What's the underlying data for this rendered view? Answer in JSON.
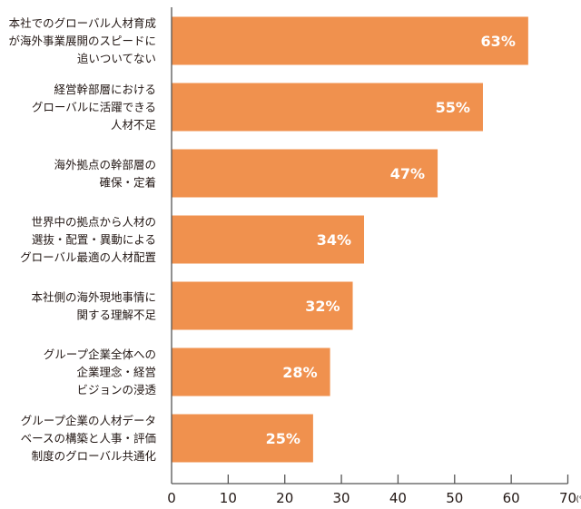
{
  "chart_data": {
    "type": "bar",
    "orientation": "horizontal",
    "categories": [
      [
        "本社でのグローバル人材育成",
        "が海外事業展開のスピードに",
        "追いついてない"
      ],
      [
        "経営幹部層における",
        "グローバルに活躍できる",
        "人材不足"
      ],
      [
        "海外拠点の幹部層の",
        "確保・定着"
      ],
      [
        "世界中の拠点から人材の",
        "選抜・配置・異動による",
        "グローバル最適の人材配置"
      ],
      [
        "本社側の海外現地事情に",
        "関する理解不足"
      ],
      [
        "グループ企業全体への",
        "企業理念・経営",
        "ビジョンの浸透"
      ],
      [
        "グループ企業の人材データ",
        "ベースの構築と人事・評価",
        "制度のグローバル共通化"
      ]
    ],
    "values": [
      63,
      55,
      47,
      34,
      32,
      28,
      25
    ],
    "data_labels": [
      "63%",
      "55%",
      "47%",
      "34%",
      "32%",
      "28%",
      "25%"
    ],
    "xlim": [
      0,
      70
    ],
    "xticks": [
      "0",
      "10",
      "20",
      "30",
      "40",
      "50",
      "60",
      "70"
    ],
    "x_unit": "(%)",
    "grid": false,
    "bar_color": "#f0914e"
  }
}
